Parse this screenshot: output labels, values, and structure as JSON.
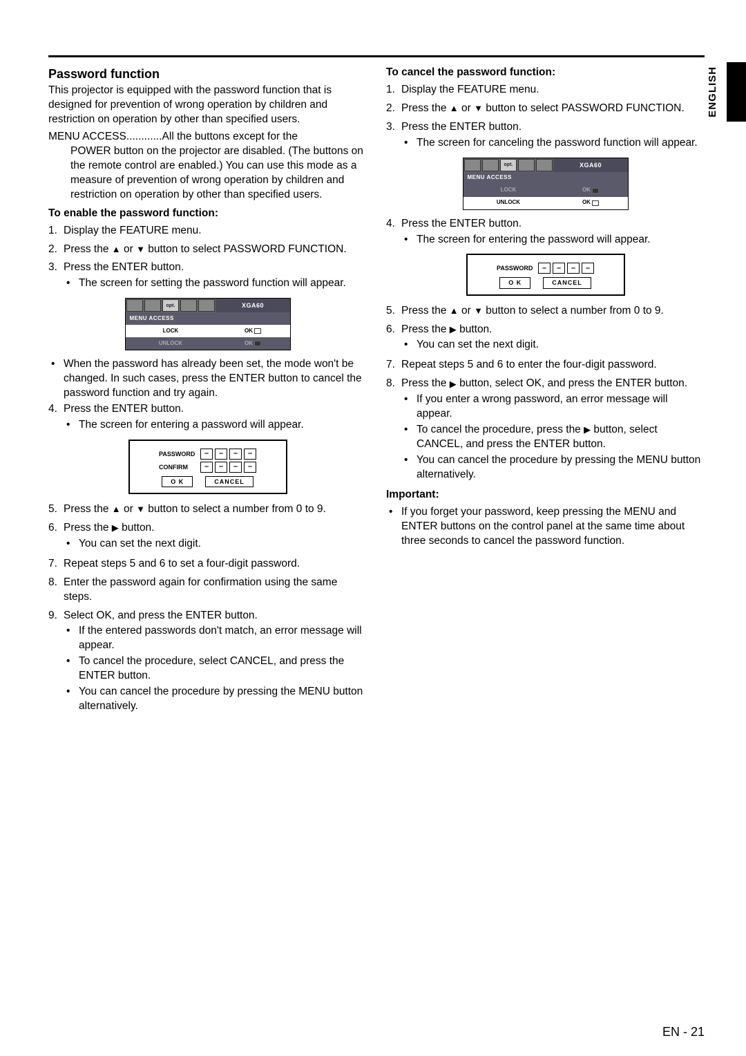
{
  "side_label": "ENGLISH",
  "page_label": "EN - 21",
  "left": {
    "section_title": "Password function",
    "intro": "This projector is equipped with the password function that is designed for prevention of wrong operation by children and restriction on operation by other than specified users.",
    "menu_access_label": "MENU ACCESS",
    "menu_access_dots": "............",
    "menu_access_line1": "All the buttons except for the",
    "menu_access_rest": "POWER button on the projector are disabled. (The buttons on the remote control are enabled.) You can use this mode as a measure of prevention of wrong operation by children and restriction on operation by other than specified users.",
    "enable_heading": "To enable the password function:",
    "s1": "Display the FEATURE menu.",
    "s2a": "Press the ",
    "s2b": " or ",
    "s2c": " button to select PASSWORD FUNCTION.",
    "s3": "Press the ENTER button.",
    "s3_b1": "The screen for setting the password function will appear.",
    "s3_b2": "When the password has already been set, the mode won't be changed. In such cases, press the ENTER button to cancel the password function and try again.",
    "s4": "Press the ENTER button.",
    "s4_b1": "The screen for entering a password will appear.",
    "s5a": "Press the ",
    "s5b": " or ",
    "s5c": " button to select a number from 0 to 9.",
    "s6a": "Press the ",
    "s6b": " button.",
    "s6_b1": "You can set the next digit.",
    "s7": "Repeat steps 5 and 6 to set a four-digit password.",
    "s8": "Enter the password again for confirmation using the same steps.",
    "s9": "Select OK, and press the ENTER button.",
    "s9_b1": "If the entered passwords don't match, an error message will appear.",
    "s9_b2": "To cancel the procedure, select CANCEL, and press the ENTER button.",
    "s9_b3": "You can cancel the procedure by pressing the MENU button alternatively."
  },
  "right": {
    "cancel_heading": "To cancel the password function:",
    "s1": "Display the FEATURE menu.",
    "s2a": "Press the ",
    "s2b": " or ",
    "s2c": " button to select PASSWORD FUNCTION.",
    "s3": "Press the ENTER button.",
    "s3_b1": "The screen for canceling the password function will appear.",
    "s4": "Press the ENTER button.",
    "s4_b1": "The screen for entering the password will appear.",
    "s5a": "Press the ",
    "s5b": " or ",
    "s5c": " button to select a number from 0 to 9.",
    "s6a": "Press the ",
    "s6b": " button.",
    "s6_b1": "You can set the next digit.",
    "s7": "Repeat steps 5 and 6 to enter the four-digit password.",
    "s8a": "Press the ",
    "s8b": " button, select OK, and press the ENTER button.",
    "s8_b1": "If you enter a wrong password, an error message will appear.",
    "s8_b2a": "To cancel the procedure, press the ",
    "s8_b2b": " button, select CANCEL, and press the ENTER button.",
    "s8_b3": "You can cancel the procedure by pressing the MENU button alternatively.",
    "important_heading": "Important:",
    "important_b1": "If you forget your password, keep pressing the MENU and ENTER buttons on the control panel at the same time about three seconds to cancel the password function."
  },
  "osd": {
    "opt_label": "opt.",
    "mode": "XGA60",
    "menu_access": "MENU ACCESS",
    "lock": "LOCK",
    "unlock": "UNLOCK",
    "ok": "OK"
  },
  "pw": {
    "password": "PASSWORD",
    "confirm": "CONFIRM",
    "ok": "O K",
    "cancel": "CANCEL",
    "dash": "–"
  },
  "glyph": {
    "up": "▲",
    "down": "▼",
    "right": "▶"
  }
}
